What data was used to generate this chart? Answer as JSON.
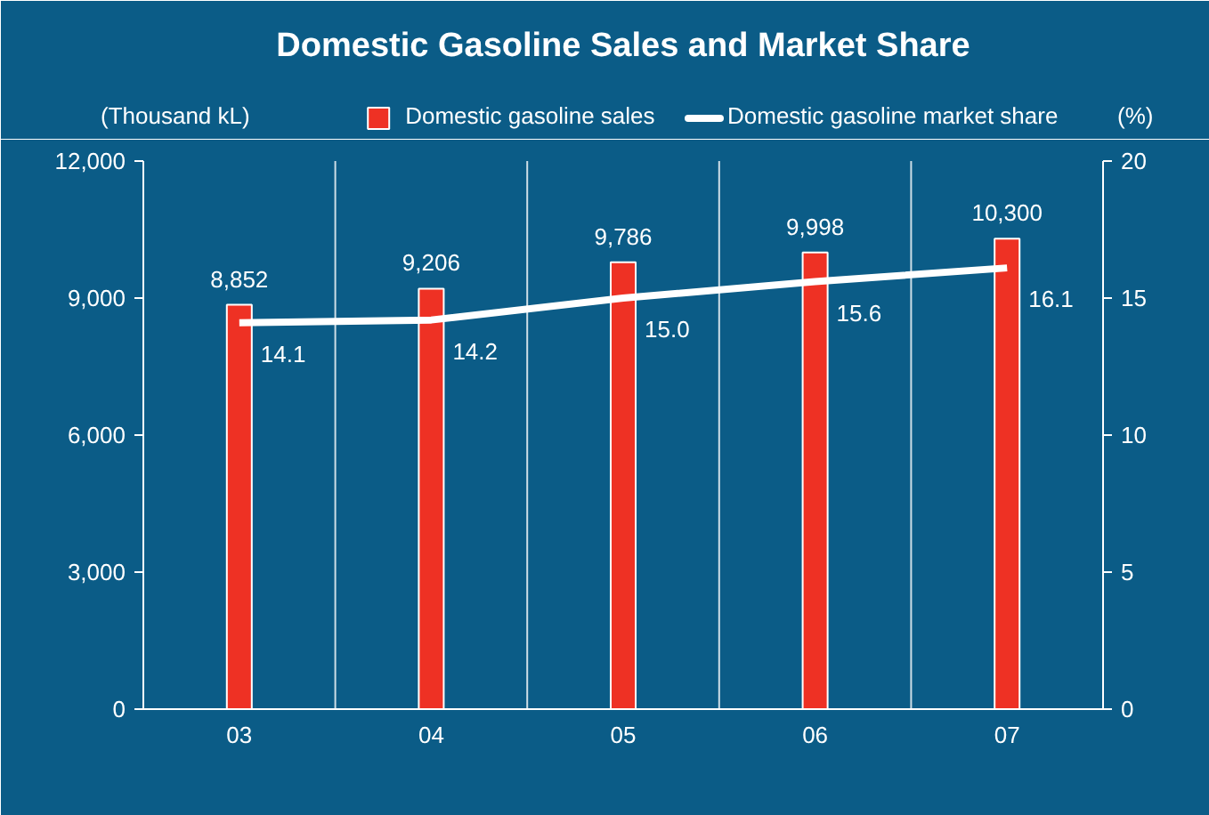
{
  "chart_data": {
    "type": "bar",
    "title": "Domestic Gasoline Sales and Market Share",
    "categories": [
      "03",
      "04",
      "05",
      "06",
      "07"
    ],
    "ylabel": "(Thousand kL)",
    "y2label": "(%)",
    "ylim": [
      0,
      12000
    ],
    "yticks": [
      0,
      {
        "value": 3000,
        "label": "3,000"
      },
      {
        "value": 6000,
        "label": "6,000"
      },
      {
        "value": 9000,
        "label": "9,000"
      },
      {
        "value": 12000,
        "label": "12,000"
      }
    ],
    "y2lim": [
      0,
      20
    ],
    "y2ticks": [
      0,
      5,
      10,
      15,
      20
    ],
    "series": [
      {
        "name": "Domestic gasoline sales",
        "color": "#ee3124",
        "values": [
          8852,
          9206,
          9786,
          9998,
          10300
        ],
        "value_labels": [
          "8,852",
          "9,206",
          "9,786",
          "9,998",
          "10,300"
        ]
      },
      {
        "name": "Domestic gasoline market share",
        "type": "line",
        "axis": "y2",
        "color": "#ffffff",
        "values": [
          14.1,
          14.2,
          15.0,
          15.6,
          16.1
        ],
        "value_labels": [
          "14.1",
          "14.2",
          "15.0",
          "15.6",
          "16.1"
        ]
      }
    ],
    "grid": "x",
    "legend": "top right"
  }
}
